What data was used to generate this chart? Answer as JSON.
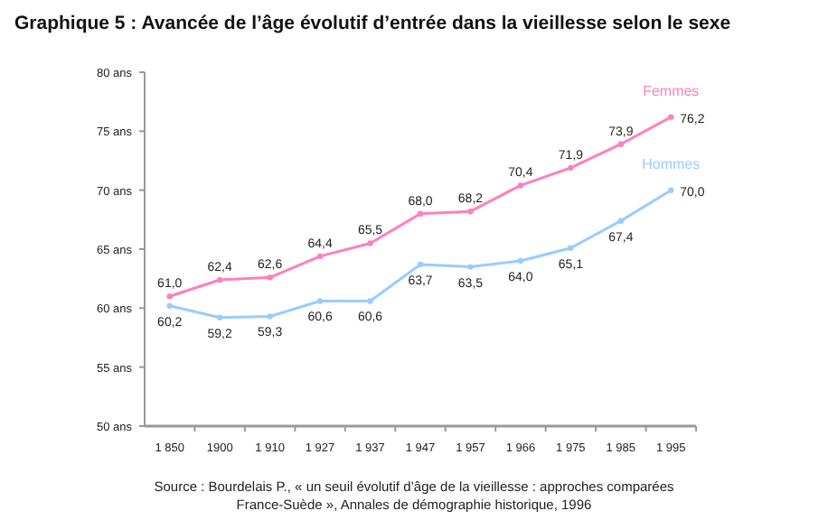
{
  "chart_data": {
    "type": "line",
    "title": "Graphique 5 : Avancée de l’âge évolutif d’entrée dans la vieillesse selon le sexe",
    "categories": [
      "1 850",
      "1900",
      "1 910",
      "1 927",
      "1 937",
      "1 947",
      "1 957",
      "1 966",
      "1 975",
      "1 985",
      "1 995"
    ],
    "series": [
      {
        "name": "Femmes",
        "color": "#ff7fbf",
        "values": [
          61.0,
          62.4,
          62.6,
          64.4,
          65.5,
          68.0,
          68.2,
          70.4,
          71.9,
          73.9,
          76.2
        ],
        "value_labels": [
          "61,0",
          "62,4",
          "62,6",
          "64,4",
          "65,5",
          "68,0",
          "68,2",
          "70,4",
          "71,9",
          "73,9",
          "76,2"
        ]
      },
      {
        "name": "Hommes",
        "color": "#99ccff",
        "values": [
          60.2,
          59.2,
          59.3,
          60.6,
          60.6,
          63.7,
          63.5,
          64.0,
          65.1,
          67.4,
          70.0
        ],
        "value_labels": [
          "60,2",
          "59,2",
          "59,3",
          "60,6",
          "60,6",
          "63,7",
          "63,5",
          "64,0",
          "65,1",
          "67,4",
          "70,0"
        ]
      }
    ],
    "ylim": [
      50,
      80
    ],
    "yticks": [
      {
        "value": 50,
        "label": "50 ans"
      },
      {
        "value": 55,
        "label": "55 ans"
      },
      {
        "value": 60,
        "label": "60 ans"
      },
      {
        "value": 65,
        "label": "65 ans"
      },
      {
        "value": 70,
        "label": "70 ans"
      },
      {
        "value": 75,
        "label": "75 ans"
      },
      {
        "value": 80,
        "label": "80 ans"
      }
    ],
    "marker": "circle",
    "line_style": "solid",
    "annotations": [
      "Source : Bourdelais P., « un seuil évolutif d’âge de la vieillesse : approches comparées France-Suède », Annales de démographie historique, 1996"
    ]
  }
}
